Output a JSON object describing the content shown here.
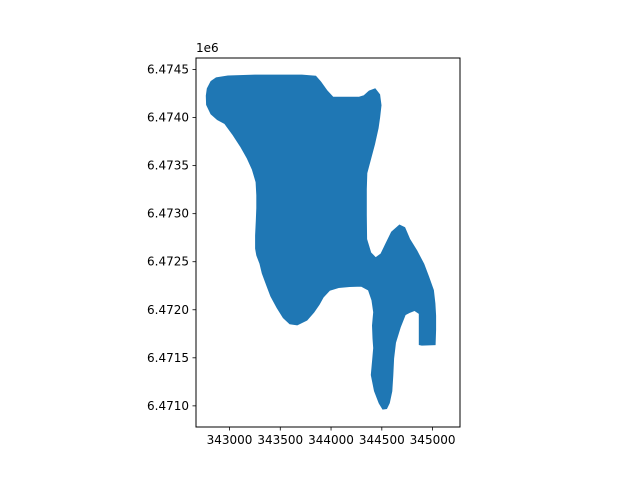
{
  "chart_data": {
    "type": "area",
    "title": "",
    "xlabel": "",
    "ylabel": "",
    "xlim": [
      342670,
      345270
    ],
    "ylim": [
      6470780,
      6474620
    ],
    "y_offset_label": "1e6",
    "x_ticks": [
      {
        "value": 343000,
        "label": "343000"
      },
      {
        "value": 343500,
        "label": "343500"
      },
      {
        "value": 344000,
        "label": "344000"
      },
      {
        "value": 344500,
        "label": "344500"
      },
      {
        "value": 345000,
        "label": "345000"
      }
    ],
    "y_ticks": [
      {
        "value": 6471000,
        "label": "6.4710"
      },
      {
        "value": 6471500,
        "label": "6.4715"
      },
      {
        "value": 6472000,
        "label": "6.4720"
      },
      {
        "value": 6472500,
        "label": "6.4725"
      },
      {
        "value": 6473000,
        "label": "6.4730"
      },
      {
        "value": 6473500,
        "label": "6.4735"
      },
      {
        "value": 6474000,
        "label": "6.4740"
      },
      {
        "value": 6474500,
        "label": "6.4745"
      }
    ],
    "grid": false,
    "series": [
      {
        "color": "#1f77b4",
        "polygons": [
          [
            [
              342781,
              6474302
            ],
            [
              342818,
              6474375
            ],
            [
              342869,
              6474413
            ],
            [
              342984,
              6474433
            ],
            [
              343257,
              6474442
            ],
            [
              343713,
              6474442
            ],
            [
              343849,
              6474431
            ],
            [
              343897,
              6474372
            ],
            [
              343962,
              6474277
            ],
            [
              344020,
              6474211
            ],
            [
              344272,
              6474211
            ],
            [
              344325,
              6474228
            ],
            [
              344376,
              6474277
            ],
            [
              344434,
              6474300
            ],
            [
              344478,
              6474239
            ],
            [
              344492,
              6474128
            ],
            [
              344478,
              6474000
            ],
            [
              344463,
              6473892
            ],
            [
              344428,
              6473723
            ],
            [
              344389,
              6473566
            ],
            [
              344352,
              6473422
            ],
            [
              344347,
              6473256
            ],
            [
              344347,
              6472986
            ],
            [
              344350,
              6472735
            ],
            [
              344391,
              6472594
            ],
            [
              344440,
              6472541
            ],
            [
              344492,
              6472581
            ],
            [
              344540,
              6472687
            ],
            [
              344596,
              6472809
            ],
            [
              344674,
              6472881
            ],
            [
              344725,
              6472855
            ],
            [
              344774,
              6472735
            ],
            [
              344845,
              6472614
            ],
            [
              344913,
              6472475
            ],
            [
              344962,
              6472340
            ],
            [
              345008,
              6472203
            ],
            [
              345023,
              6472064
            ],
            [
              345030,
              6471939
            ],
            [
              345030,
              6471792
            ],
            [
              345025,
              6471637
            ],
            [
              344894,
              6471632
            ],
            [
              344869,
              6471637
            ],
            [
              344869,
              6471734
            ],
            [
              344869,
              6471869
            ],
            [
              344869,
              6471960
            ],
            [
              344823,
              6471993
            ],
            [
              344771,
              6471971
            ],
            [
              344730,
              6471949
            ],
            [
              344681,
              6471818
            ],
            [
              344635,
              6471658
            ],
            [
              344616,
              6471492
            ],
            [
              344608,
              6471318
            ],
            [
              344598,
              6471153
            ],
            [
              344574,
              6471030
            ],
            [
              344547,
              6470972
            ],
            [
              344510,
              6470966
            ],
            [
              344474,
              6471029
            ],
            [
              344428,
              6471155
            ],
            [
              344396,
              6471321
            ],
            [
              344410,
              6471481
            ],
            [
              344420,
              6471601
            ],
            [
              344413,
              6471703
            ],
            [
              344408,
              6471836
            ],
            [
              344420,
              6471975
            ],
            [
              344403,
              6472097
            ],
            [
              344369,
              6472205
            ],
            [
              344296,
              6472246
            ],
            [
              344183,
              6472242
            ],
            [
              344074,
              6472232
            ],
            [
              343986,
              6472203
            ],
            [
              343923,
              6472132
            ],
            [
              343883,
              6472057
            ],
            [
              343830,
              6471975
            ],
            [
              343762,
              6471892
            ],
            [
              343667,
              6471844
            ],
            [
              343594,
              6471854
            ],
            [
              343530,
              6471917
            ],
            [
              343469,
              6472022
            ],
            [
              343408,
              6472140
            ],
            [
              343372,
              6472239
            ],
            [
              343323,
              6472378
            ],
            [
              343299,
              6472483
            ],
            [
              343269,
              6472566
            ],
            [
              343257,
              6472637
            ],
            [
              343257,
              6472774
            ],
            [
              343264,
              6472925
            ],
            [
              343269,
              6473059
            ],
            [
              343269,
              6473192
            ],
            [
              343262,
              6473329
            ],
            [
              343225,
              6473459
            ],
            [
              343172,
              6473582
            ],
            [
              343108,
              6473701
            ],
            [
              343035,
              6473819
            ],
            [
              342954,
              6473937
            ],
            [
              342881,
              6473979
            ],
            [
              342818,
              6474037
            ],
            [
              342774,
              6474133
            ],
            [
              342771,
              6474227
            ]
          ]
        ]
      }
    ]
  }
}
